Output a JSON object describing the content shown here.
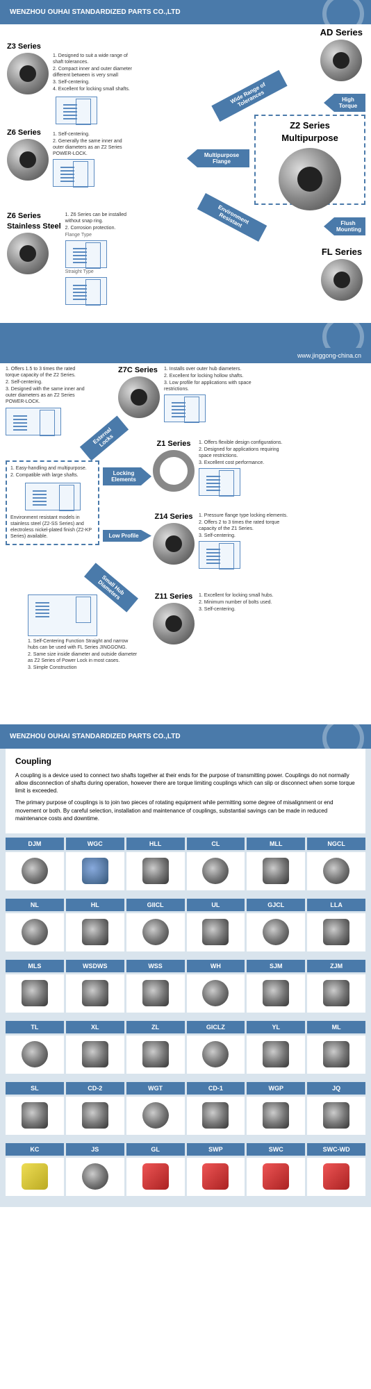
{
  "company": "WENZHOU OUHAI STANDARDIZED PARTS CO.,LTD",
  "url": "www.jinggong-china.cn",
  "section1": {
    "z3": {
      "title": "Z3 Series",
      "features": [
        "1. Designed to suit a wide range of shaft tolerances.",
        "2. Compact inner and outer diameter different between is very small",
        "3. Self-centering.",
        "4. Excellent for locking small shafts."
      ]
    },
    "z6": {
      "title": "Z6 Series",
      "features": [
        "1. Self-centering.",
        "2. Generally the same inner and outer diameters as an Z2 Series POWER-LOCK."
      ]
    },
    "z6ss": {
      "title": "Z6 Series",
      "subtitle": "Stainless Steel",
      "features": [
        "1. Z6 Series can be installed without snap ring.",
        "2. Corrosion protection."
      ],
      "label1": "Flange Type",
      "label2": "Straight Type"
    },
    "ad": {
      "title": "AD Series"
    },
    "z2": {
      "title": "Z2 Series",
      "subtitle": "Multipurpose"
    },
    "fl": {
      "title": "FL Series"
    },
    "arrows": {
      "wide_range": "Wide Range of Tolerances",
      "high_torque": "High Torque",
      "multipurpose": "Multipurpose Flange",
      "environment": "Environment Resistant",
      "flush": "Flush Mounting"
    }
  },
  "section2": {
    "top_features": [
      "1. Offers 1.5 to 3 times the rated torque capacity of the Z2 Series.",
      "2. Self-centering.",
      "3. Designed with the same inner and outer diameters as an Z2 Series POWER-LOCK."
    ],
    "z7c": {
      "title": "Z7C Series",
      "features": [
        "1. Installs over outer hub diameters.",
        "2. Excellent for locking hollow shafts.",
        "3. Low profile for applications with space restrictions."
      ]
    },
    "z1": {
      "title": "Z1 Series",
      "features": [
        "1. Offers flexible design configurations.",
        "2. Designed for applications requiring space restrictions.",
        "3. Excellent cost performance."
      ]
    },
    "z14": {
      "title": "Z14 Series",
      "features": [
        "1. Pressure flange type locking elements.",
        "2. Offers 2 to 3 times the rated torque capacity of the Z1 Series.",
        "3. Self-centering."
      ]
    },
    "z11": {
      "title": "Z11 Series",
      "features": [
        "1. Excellent for locking small hubs.",
        "2. Minimum number of bolts used.",
        "3. Self-centering."
      ]
    },
    "left_box": {
      "top": [
        "1. Easy-handling and multipurpose.",
        "2. Compatible with large shafts."
      ],
      "bottom": "Environment resistant models in stainless steel (Z2-SS Series) and electroless nickel-plated finish (Z2-KP Series) available."
    },
    "bottom_notes": [
      "1. Self-Centering Function Straight and narrow hubs can be used with FL Series JINGGONG.",
      "2. Same size inside diameter and outside diameter as Z2 Series of Power Lock in most cases.",
      "3. Simple Construction"
    ],
    "arrows": {
      "external": "External Locks",
      "locking": "Locking Elements",
      "low": "Low Profile",
      "small": "Small Hub Diameters"
    }
  },
  "coupling": {
    "title": "Coupling",
    "p1": "A coupling is a device used to connect two shafts together at their ends for the purpose of transmitting power. Couplings do not normally allow disconnection of shafts during operation, however there are torque limiting couplings which can slip or disconnect when some torque limit is exceeded.",
    "p2": "The primary purpose of couplings is to join two pieces of rotating equipment while permitting some degree of misalignment or end movement or both. By careful selection, installation and maintenance of couplings, substantial savings can be made in reduced maintenance costs and downtime.",
    "headers": [
      [
        "DJM",
        "WGC",
        "HLL",
        "CL",
        "MLL",
        "NGCL"
      ],
      [
        "NL",
        "HL",
        "GIICL",
        "UL",
        "GJCL",
        "LLA"
      ],
      [
        "MLS",
        "WSDWS",
        "WSS",
        "WH",
        "SJM",
        "ZJM"
      ],
      [
        "TL",
        "XL",
        "ZL",
        "GICLZ",
        "YL",
        "ML"
      ],
      [
        "SL",
        "CD-2",
        "WGT",
        "CD-1",
        "WGP",
        "JQ"
      ],
      [
        "KC",
        "JS",
        "GL",
        "SWP",
        "SWC",
        "SWC-WD"
      ]
    ]
  }
}
